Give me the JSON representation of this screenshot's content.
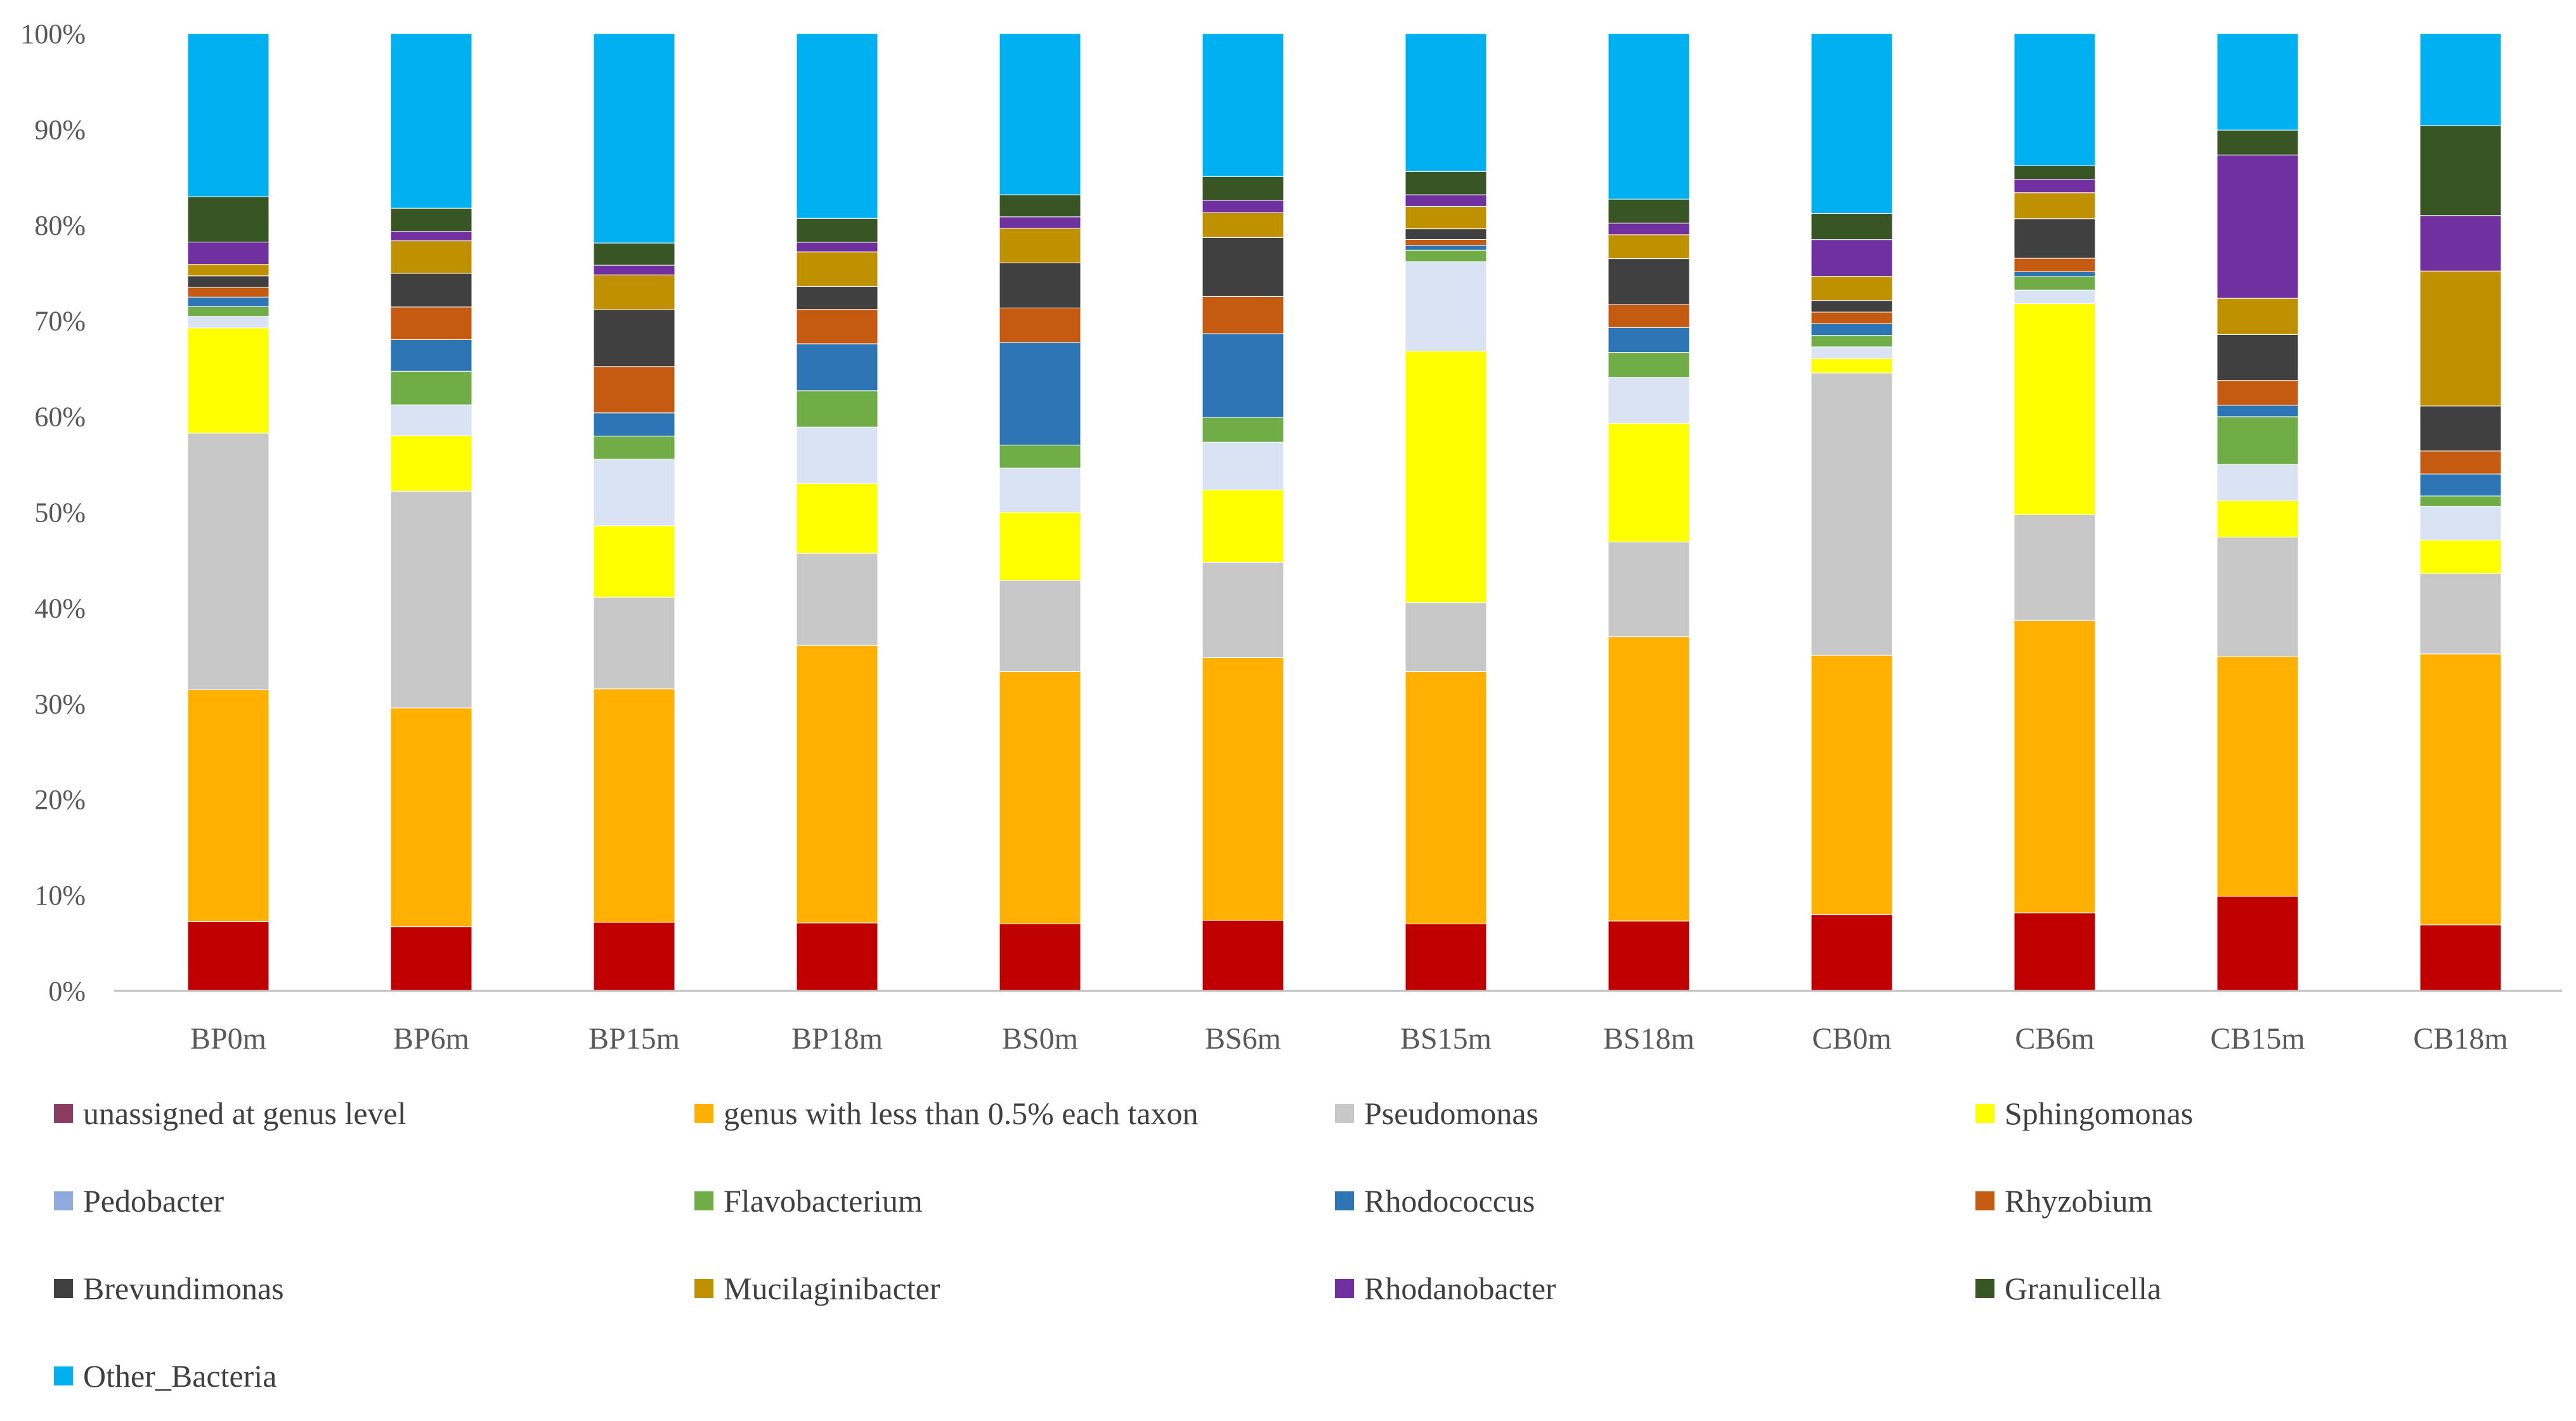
{
  "chart_data": {
    "type": "bar",
    "stacked": true,
    "normalized": true,
    "title": "",
    "xlabel": "",
    "ylabel": "",
    "ylim": [
      0,
      100
    ],
    "yticks": [
      "0%",
      "10%",
      "20%",
      "30%",
      "40%",
      "50%",
      "60%",
      "70%",
      "80%",
      "90%",
      "100%"
    ],
    "grid": false,
    "legend_position": "bottom",
    "categories": [
      "BP0m",
      "BP6m",
      "BP15m",
      "BP18m",
      "BS0m",
      "BS6m",
      "BS15m",
      "BS18m",
      "CB0m",
      "CB6m",
      "CB15m",
      "CB18m"
    ],
    "series": [
      {
        "name": "unassigned at genus level",
        "color": "#c00000",
        "legend_color": "#8b3a62",
        "values": [
          7.2,
          6.7,
          7.1,
          7.1,
          7.0,
          7.4,
          6.9,
          7.3,
          7.9,
          8.1,
          9.9,
          6.9
        ]
      },
      {
        "name": "genus with less than 0.5% each taxon",
        "color": "#ffb000",
        "values": [
          24.0,
          22.8,
          24.2,
          29.0,
          26.3,
          27.6,
          26.0,
          29.7,
          26.8,
          30.3,
          25.1,
          28.3
        ]
      },
      {
        "name": "Pseudomonas",
        "color": "#c8c8c8",
        "values": [
          26.6,
          22.6,
          9.5,
          9.6,
          9.5,
          10.0,
          7.1,
          9.9,
          29.2,
          11.0,
          12.5,
          8.4
        ]
      },
      {
        "name": "Sphingomonas",
        "color": "#ffff00",
        "values": [
          10.9,
          5.8,
          7.4,
          7.3,
          7.1,
          7.6,
          25.9,
          12.4,
          1.5,
          21.9,
          3.8,
          3.5
        ]
      },
      {
        "name": "Pedobacter",
        "color": "#dae3f3",
        "legend_color": "#8faadc",
        "values": [
          1.2,
          3.2,
          6.9,
          5.9,
          4.6,
          5.0,
          9.2,
          4.8,
          1.2,
          1.4,
          3.8,
          3.5
        ]
      },
      {
        "name": "Flavobacterium",
        "color": "#70ad47",
        "values": [
          1.0,
          3.5,
          2.4,
          3.8,
          2.4,
          2.6,
          1.2,
          2.6,
          1.2,
          1.4,
          5.0,
          1.1
        ]
      },
      {
        "name": "Rhodococcus",
        "color": "#2e75b6",
        "values": [
          1.0,
          3.3,
          2.4,
          4.9,
          10.7,
          8.8,
          0.5,
          2.6,
          1.2,
          0.5,
          1.2,
          2.3
        ]
      },
      {
        "name": "Rhyzobium",
        "color": "#c55a11",
        "values": [
          1.0,
          3.4,
          4.8,
          3.6,
          3.6,
          3.9,
          0.6,
          2.4,
          1.2,
          1.4,
          2.6,
          2.4
        ]
      },
      {
        "name": "Brevundimonas",
        "color": "#404040",
        "values": [
          1.2,
          3.5,
          5.9,
          2.4,
          4.7,
          6.2,
          1.1,
          4.8,
          1.2,
          4.1,
          4.8,
          4.7
        ]
      },
      {
        "name": "Mucilaginibacter",
        "color": "#bf9000",
        "values": [
          1.2,
          3.4,
          3.6,
          3.6,
          3.6,
          2.6,
          2.3,
          2.5,
          2.5,
          2.7,
          3.8,
          14.1
        ]
      },
      {
        "name": "Rhodanobacter",
        "color": "#7030a0",
        "values": [
          2.3,
          1.0,
          1.0,
          1.0,
          1.2,
          1.3,
          1.2,
          1.2,
          3.8,
          1.4,
          15.0,
          5.8
        ]
      },
      {
        "name": "Granulicella",
        "color": "#375623",
        "values": [
          4.7,
          2.4,
          2.3,
          2.5,
          2.3,
          2.5,
          2.4,
          2.5,
          2.7,
          1.4,
          2.6,
          9.4
        ]
      },
      {
        "name": "Other_Bacteria",
        "color": "#00b0f0",
        "values": [
          16.9,
          18.2,
          21.7,
          19.3,
          16.8,
          15.0,
          14.2,
          17.3,
          18.6,
          13.7,
          10.1,
          9.6
        ]
      }
    ]
  }
}
